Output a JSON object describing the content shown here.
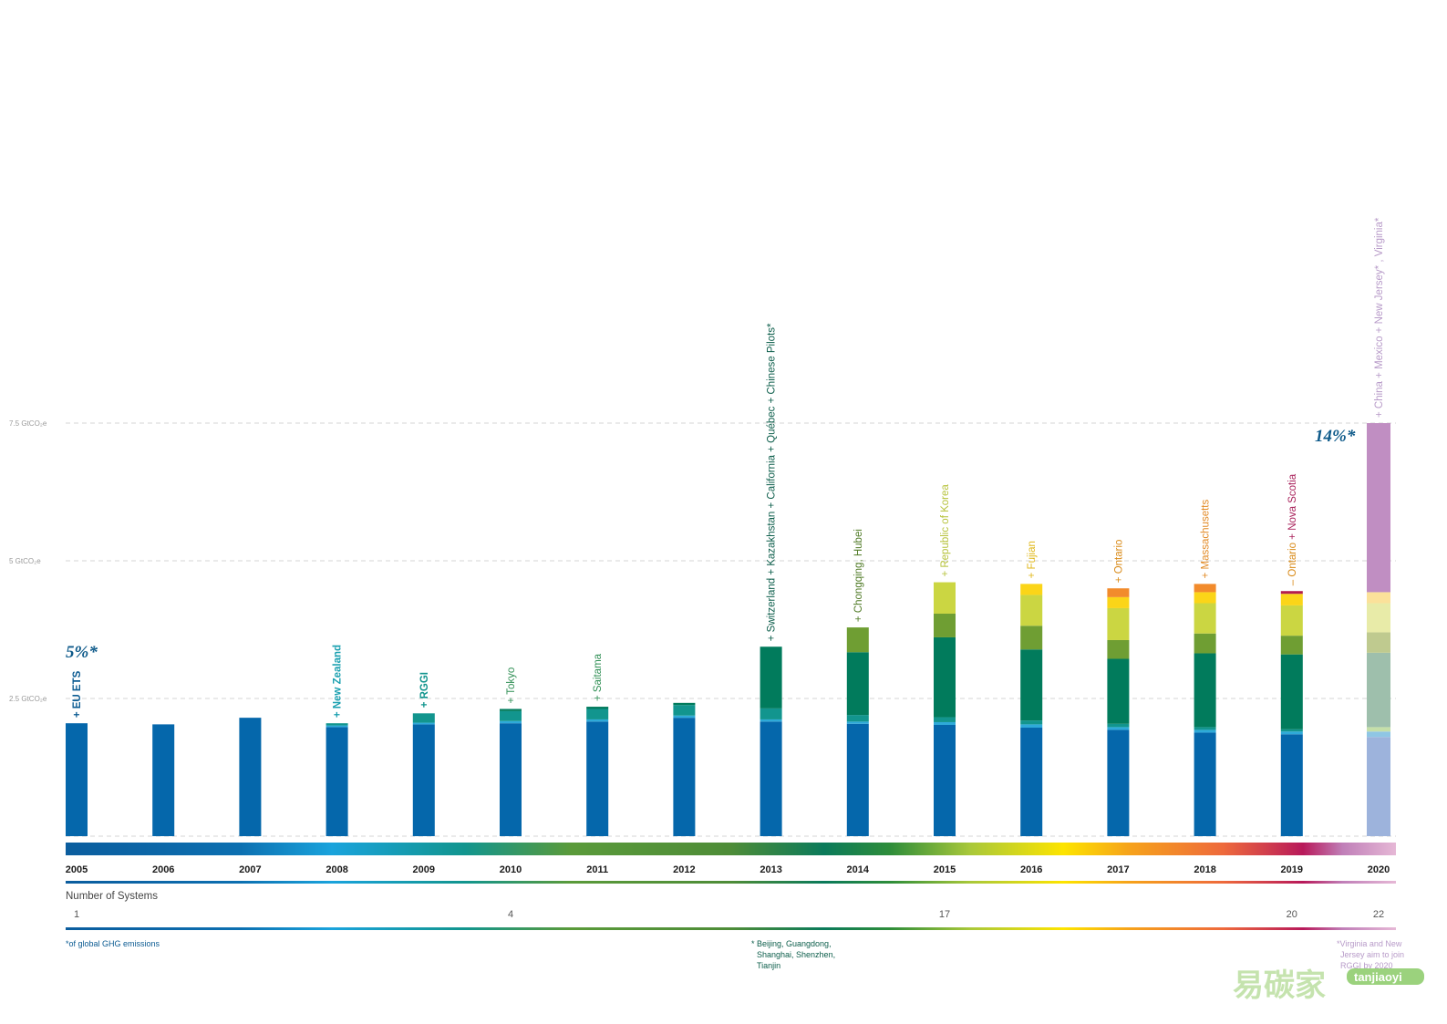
{
  "chart_data": {
    "type": "bar",
    "stacked": true,
    "ylabel_ticks": [
      {
        "value": 2.5,
        "label": "2.5 GtCO₂e"
      },
      {
        "value": 5,
        "label": "5 GtCO₂e"
      },
      {
        "value": 7.5,
        "label": "7.5 GtCO₂e"
      }
    ],
    "ylim": [
      0,
      7.5
    ],
    "grid": true,
    "categories": [
      "2005",
      "2006",
      "2007",
      "2008",
      "2009",
      "2010",
      "2011",
      "2012",
      "2013",
      "2014",
      "2015",
      "2016",
      "2017",
      "2018",
      "2019",
      "2020"
    ],
    "segment_colors": [
      "#0567ab",
      "#2eaad9",
      "#12958e",
      "#017b5c",
      "#6f9e33",
      "#cbd642",
      "#fbd518",
      "#f28b2c",
      "#b41d4e",
      "#c07fb8"
    ],
    "series_values": [
      [
        2.05,
        0,
        0,
        0,
        0,
        0,
        0,
        0,
        0,
        0
      ],
      [
        2.03,
        0,
        0,
        0,
        0,
        0,
        0,
        0,
        0,
        0
      ],
      [
        2.15,
        0,
        0,
        0,
        0,
        0,
        0,
        0,
        0,
        0
      ],
      [
        1.98,
        0.03,
        0.04,
        0,
        0,
        0,
        0,
        0,
        0,
        0
      ],
      [
        2.03,
        0.03,
        0.17,
        0,
        0,
        0,
        0,
        0,
        0,
        0
      ],
      [
        2.05,
        0.04,
        0.18,
        0.04,
        0,
        0,
        0,
        0,
        0,
        0
      ],
      [
        2.08,
        0.04,
        0.19,
        0.04,
        0,
        0,
        0,
        0,
        0,
        0
      ],
      [
        2.15,
        0.04,
        0.19,
        0.04,
        0,
        0,
        0,
        0,
        0,
        0
      ],
      [
        2.08,
        0.04,
        0.2,
        1.12,
        0,
        0,
        0,
        0,
        0,
        0
      ],
      [
        2.04,
        0.04,
        0.12,
        1.14,
        0.45,
        0,
        0,
        0,
        0,
        0
      ],
      [
        2.02,
        0.05,
        0.09,
        1.45,
        0.43,
        0.57,
        0,
        0,
        0,
        0
      ],
      [
        1.97,
        0.06,
        0.07,
        1.29,
        0.43,
        0.56,
        0.2,
        0,
        0,
        0
      ],
      [
        1.93,
        0.05,
        0.06,
        1.18,
        0.34,
        0.58,
        0.2,
        0.16,
        0,
        0
      ],
      [
        1.88,
        0.05,
        0.05,
        1.34,
        0.36,
        0.55,
        0.2,
        0.15,
        0,
        0
      ],
      [
        1.85,
        0.05,
        0.04,
        1.36,
        0.34,
        0.55,
        0.21,
        0,
        0.05,
        0
      ]
    ],
    "last_bar_segments": [
      {
        "color": "#9db3dc",
        "value": 1.8
      },
      {
        "color": "#8fc6e4",
        "value": 0.1
      },
      {
        "color": "#c5dfa9",
        "value": 0.08
      },
      {
        "color": "#9ebfac",
        "value": 1.35
      },
      {
        "color": "#bfca8f",
        "value": 0.37
      },
      {
        "color": "#e8eba8",
        "value": 0.53
      },
      {
        "color": "#fbe19a",
        "value": 0.2
      },
      {
        "color": "#c08ec2",
        "value": 3.07
      }
    ],
    "annotations": [
      {
        "year": "2005",
        "text": "+ EU ETS",
        "color": "#0b5b92",
        "bold": true
      },
      {
        "year": "2008",
        "text": "+ New Zealand",
        "color": "#1aa0b0",
        "bold": true
      },
      {
        "year": "2009",
        "text": "+ RGGI",
        "color": "#12958e",
        "bold": true
      },
      {
        "year": "2010",
        "text": "+ Tokyo",
        "color": "#2f8f54",
        "bold": false
      },
      {
        "year": "2011",
        "text": "+ Saitama",
        "color": "#2f8f54",
        "bold": false
      },
      {
        "year": "2013",
        "text": "+ Switzerland + Kazakhstan + California + Québec + Chinese Pilots*",
        "color": "#0b5d4a",
        "bold": false
      },
      {
        "year": "2014",
        "text": "+ Chongqing, Hubei",
        "color": "#4f7a25",
        "bold": false
      },
      {
        "year": "2015",
        "text": "+ Republic of Korea",
        "color": "#b6c23a",
        "bold": false
      },
      {
        "year": "2016",
        "text": "+ Fujian",
        "color": "#e0b718",
        "bold": false
      },
      {
        "year": "2017",
        "text": "+ Ontario",
        "color": "#d98a17",
        "bold": false
      },
      {
        "year": "2018",
        "text": "+ Massachusetts",
        "color": "#e28a25",
        "bold": false
      },
      {
        "year": "2019",
        "text": "– Ontario + Nova Scotia",
        "color": "#d98a17",
        "color2": "#a81f59",
        "bold": false,
        "split_at": 10
      },
      {
        "year": "2020",
        "text": "+ China + Mexico + New Jersey* , Virginia*",
        "color": "#b79ac8",
        "bold": false
      }
    ],
    "share_labels": [
      {
        "text": "5%*",
        "position": "above-first-bar"
      },
      {
        "text": "14%*",
        "position": "left-of-last-bar"
      }
    ],
    "number_of_systems": {
      "label": "Number of Systems",
      "values": [
        {
          "year": "2005",
          "value": "1"
        },
        {
          "year": "2010",
          "value": "4"
        },
        {
          "year": "2015",
          "value": "17"
        },
        {
          "year": "2019",
          "value": "20"
        },
        {
          "year": "2020",
          "value": "22"
        }
      ]
    },
    "footnotes": {
      "left": "*of global GHG emissions",
      "middle": [
        "* Beijing, Guangdong,",
        "Shanghai, Shenzhen,",
        "Tianjin"
      ],
      "right": [
        "*Virginia and New",
        "Jersey aim to join",
        "RGGI by 2020"
      ]
    }
  },
  "watermark": {
    "text": "易碳家",
    "sub": "tanjiaoyi",
    ".com": ".com"
  }
}
